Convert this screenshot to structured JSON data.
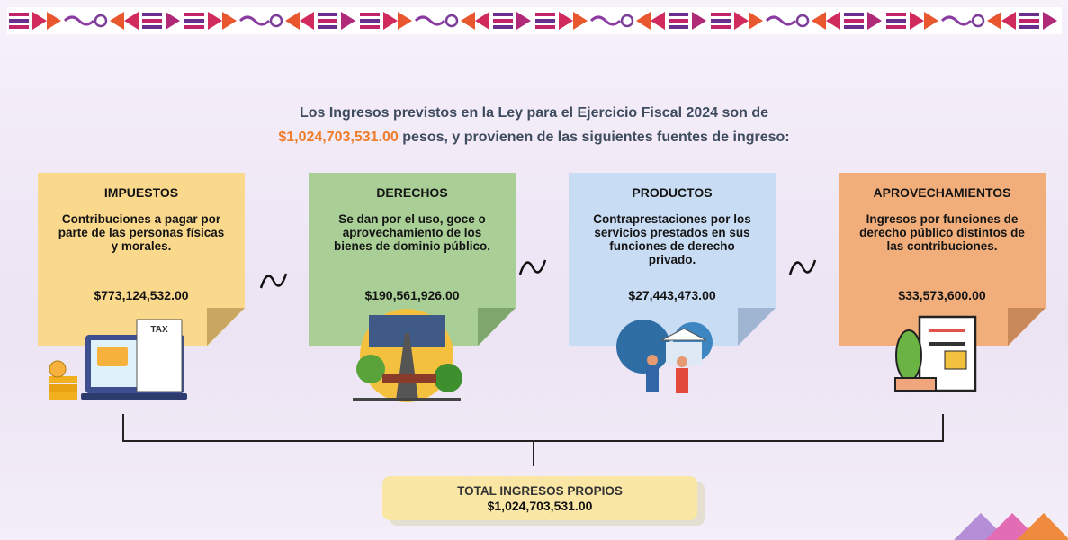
{
  "header": {
    "line1": "Los Ingresos previstos en la Ley para el Ejercicio Fiscal 2024 son de",
    "amount": "$1,024,703,531.00",
    "line2": "pesos, y provienen de las siguientes fuentes de ingreso:"
  },
  "cards": [
    {
      "title": "IMPUESTOS",
      "description": "Contribuciones a pagar por parte de las personas físicas y morales.",
      "amount": "$773,124,532.00"
    },
    {
      "title": "DERECHOS",
      "description": "Se dan por el uso, goce o aprovechamiento de los bienes de dominio público.",
      "amount": "$190,561,926.00"
    },
    {
      "title": "PRODUCTOS",
      "description": "Contraprestaciones por los servicios prestados en sus funciones de derecho privado.",
      "amount": "$27,443,473.00"
    },
    {
      "title": "APROVECHAMIENTOS",
      "description": "Ingresos por funciones de derecho público distintos de las contribuciones.",
      "amount": "$33,573,600.00"
    }
  ],
  "total": {
    "label": "TOTAL INGRESOS PROPIOS",
    "amount": "$1,024,703,531.00"
  }
}
